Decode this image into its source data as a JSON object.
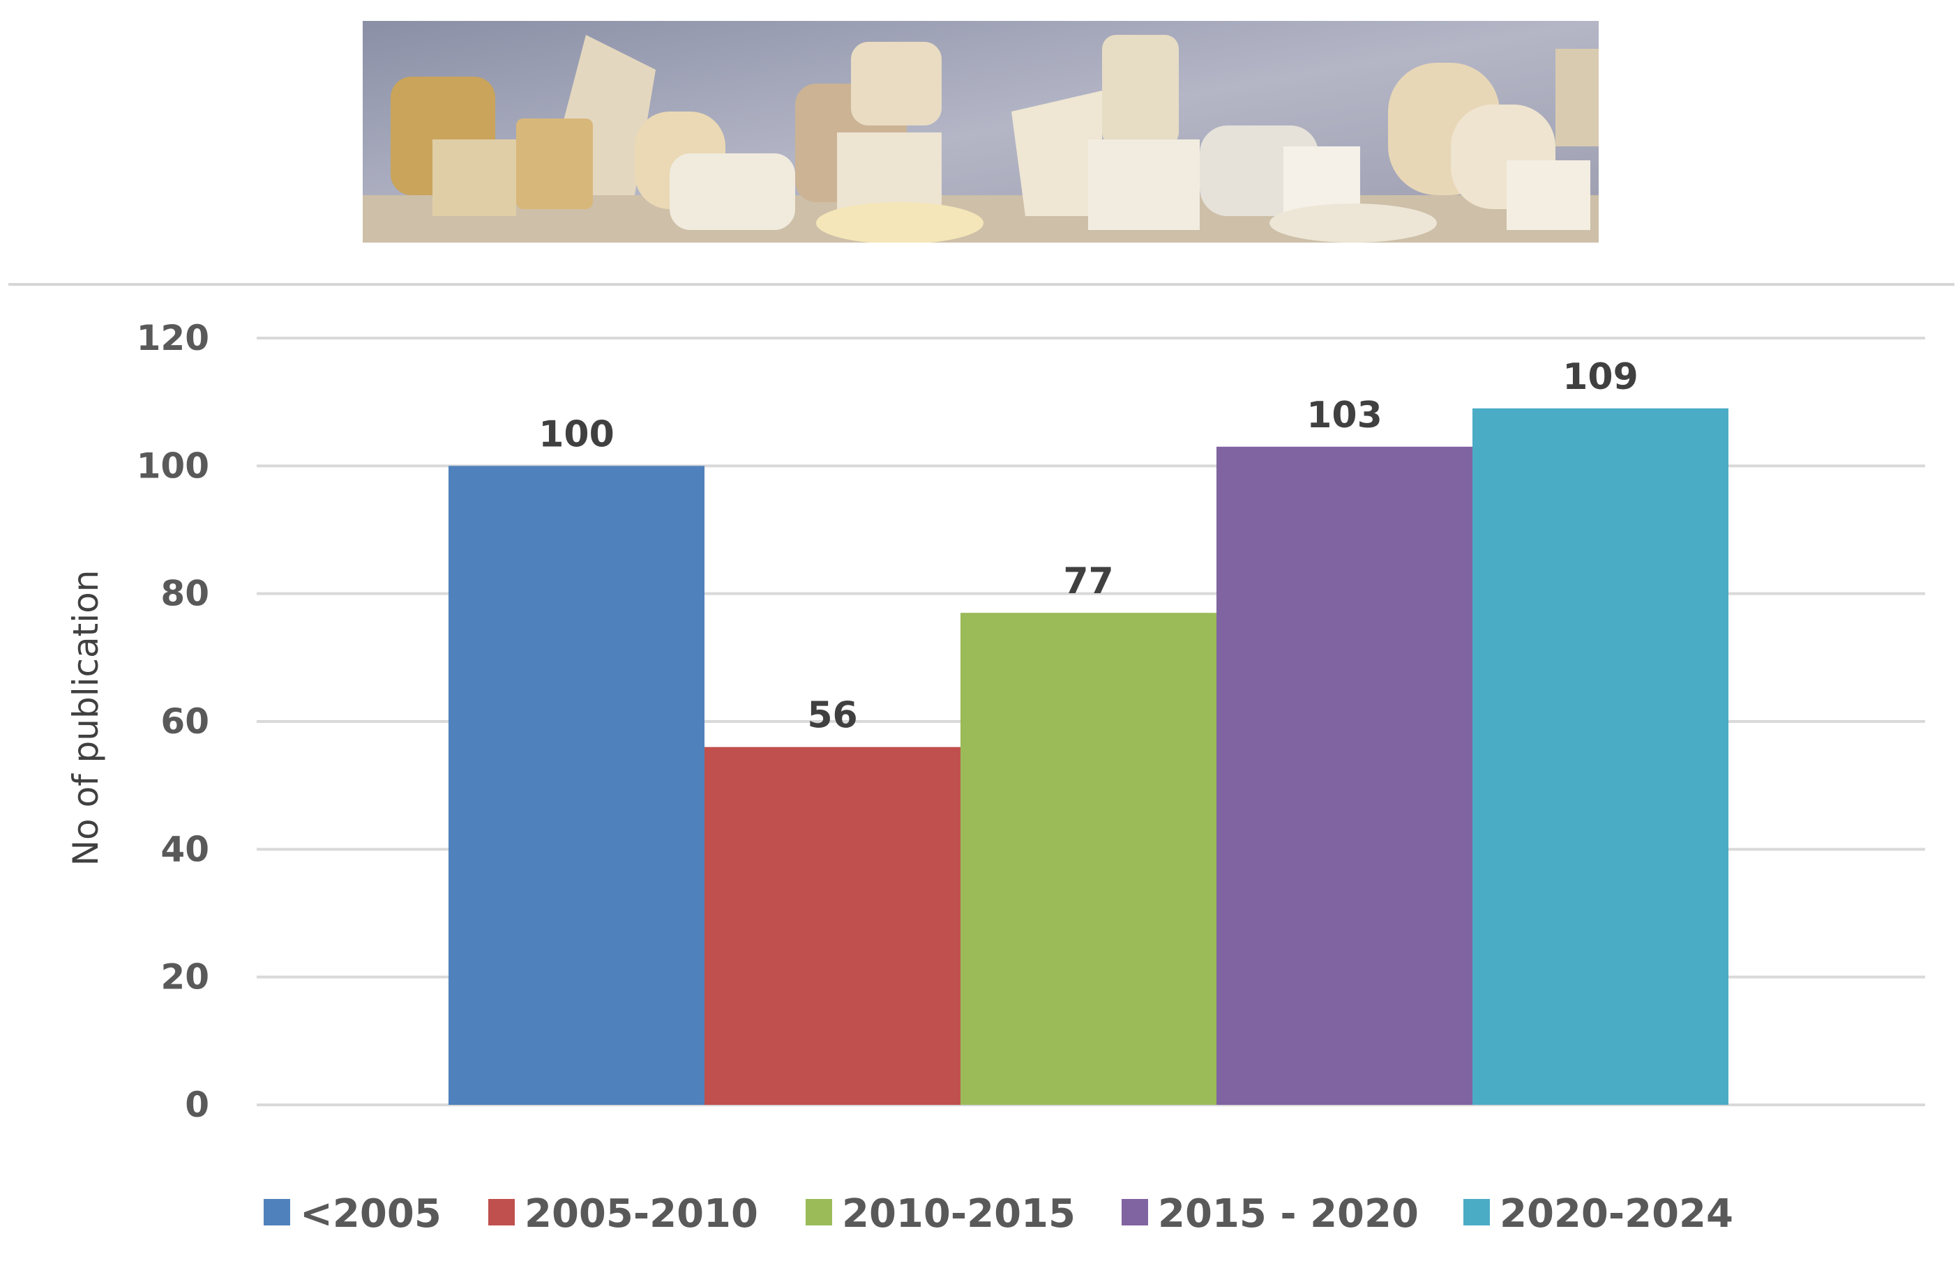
{
  "banner": {
    "image": "cheese-assortment-photo"
  },
  "chart_data": {
    "type": "bar",
    "categories": [
      "<2005",
      "2005-2010",
      "2010-2015",
      "2015 - 2020",
      "2020-2024"
    ],
    "values": [
      100,
      56,
      77,
      103,
      109
    ],
    "colors": [
      "#4f81bd",
      "#c0504d",
      "#9bbb59",
      "#8064a2",
      "#4bacc6"
    ],
    "ylabel": "No of publication",
    "ylim": [
      0,
      120
    ],
    "yticks": [
      0,
      20,
      40,
      60,
      80,
      100,
      120
    ],
    "grid": true,
    "legend": "bottom"
  }
}
